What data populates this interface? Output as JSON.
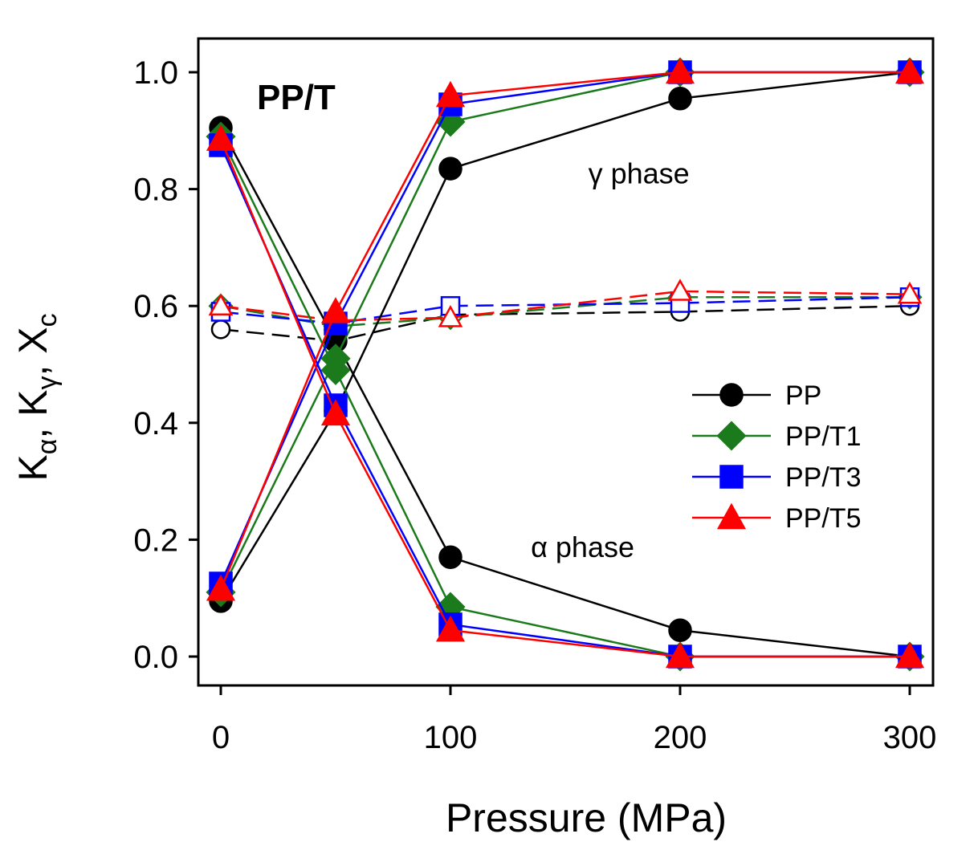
{
  "chart_data": {
    "type": "line",
    "title": "PP/T",
    "xlabel": "Pressure (MPa)",
    "ylabel": "Kα, Kγ, Xc",
    "ylabel_parts": {
      "k1": "K",
      "s1": "α",
      "k2": "K",
      "s2": "γ",
      "k3": "X",
      "s3": "c"
    },
    "x": [
      0,
      50,
      100,
      200,
      300
    ],
    "xlim": [
      -10,
      310
    ],
    "ylim": [
      -0.05,
      1.05
    ],
    "xticks": [
      0,
      100,
      200,
      300
    ],
    "xtick_labels": [
      "0",
      "100",
      "200",
      "300"
    ],
    "yticks": [
      0.0,
      0.2,
      0.4,
      0.6,
      0.8,
      1.0
    ],
    "ytick_labels": [
      "0.0",
      "0.2",
      "0.4",
      "0.6",
      "0.8",
      "1.0"
    ],
    "annotations": {
      "gamma": {
        "text": "γ phase",
        "x": 160,
        "y": 0.81
      },
      "alpha": {
        "text": "α phase",
        "x": 135,
        "y": 0.17
      }
    },
    "series": [
      {
        "name": "PP",
        "color": "#000000",
        "marker": "circle",
        "k_alpha": [
          0.905,
          0.54,
          0.17,
          0.045,
          0.0
        ],
        "k_gamma": [
          0.095,
          0.42,
          0.835,
          0.955,
          1.0
        ],
        "xc": [
          0.56,
          0.54,
          0.585,
          0.59,
          0.6
        ]
      },
      {
        "name": "PP/T1",
        "color": "#1b7a1b",
        "marker": "diamond",
        "k_alpha": [
          0.89,
          0.49,
          0.085,
          0.0,
          0.0
        ],
        "k_gamma": [
          0.11,
          0.51,
          0.915,
          1.0,
          1.0
        ],
        "xc": [
          0.6,
          0.565,
          0.58,
          0.615,
          0.615
        ]
      },
      {
        "name": "PP/T3",
        "color": "#0000ff",
        "marker": "square",
        "k_alpha": [
          0.875,
          0.43,
          0.055,
          0.0,
          0.0
        ],
        "k_gamma": [
          0.125,
          0.57,
          0.945,
          1.0,
          1.0
        ],
        "xc": [
          0.59,
          0.57,
          0.6,
          0.605,
          0.615
        ]
      },
      {
        "name": "PP/T5",
        "color": "#ff0000",
        "marker": "triangle",
        "k_alpha": [
          0.885,
          0.415,
          0.045,
          0.0,
          0.0
        ],
        "k_gamma": [
          0.115,
          0.59,
          0.96,
          1.0,
          1.0
        ],
        "xc": [
          0.6,
          0.575,
          0.58,
          0.625,
          0.62
        ]
      }
    ],
    "legend": [
      "PP",
      "PP/T1",
      "PP/T3",
      "PP/T5"
    ],
    "legend_position": "center-right",
    "grid": false
  }
}
